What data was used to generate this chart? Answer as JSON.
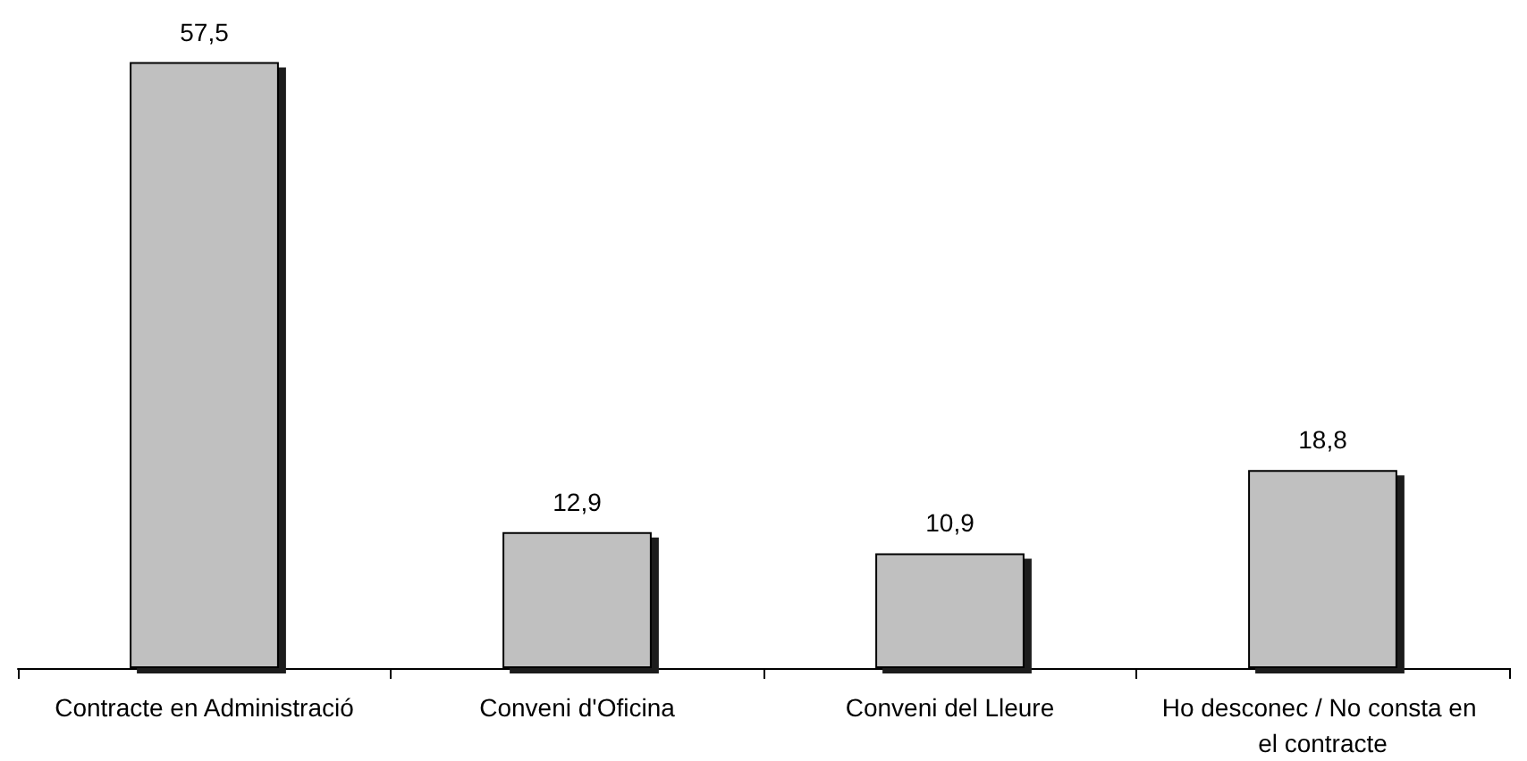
{
  "chart_data": {
    "type": "bar",
    "categories": [
      "Contracte en Administració",
      "Conveni d'Oficina",
      "Conveni del Lleure",
      "Ho desconec / No consta en el contracte"
    ],
    "values": [
      57.5,
      12.9,
      10.9,
      18.8
    ],
    "value_labels": [
      "57,5",
      "12,9",
      "10,9",
      "18,8"
    ],
    "color": "#c0c0c0"
  }
}
